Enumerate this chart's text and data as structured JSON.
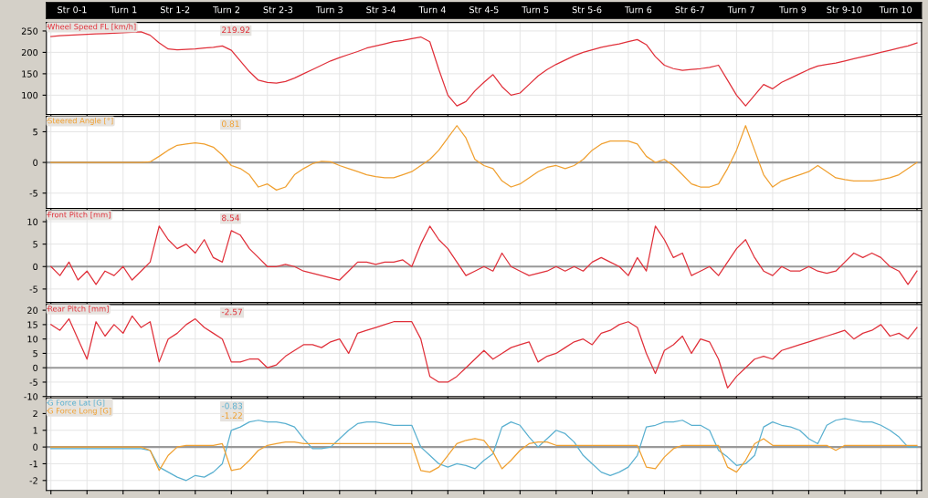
{
  "chart_data": [
    {
      "type": "other",
      "annotations": [
        "Str 0-1",
        "Turn 1",
        "Str 1-2",
        "Turn 2",
        "Str 2-3",
        "Turn 3",
        "Str 3-4",
        "Turn 4",
        "Str 4-5",
        "Turn 5",
        "Str 5-6",
        "Turn 6",
        "Str 6-7",
        "Turn 7",
        "Turn 9",
        "Str 9-10",
        "Turn 10"
      ]
    },
    {
      "type": "line",
      "categories": [
        null,
        null,
        null,
        null,
        null,
        null,
        null,
        null,
        null,
        null,
        null,
        null,
        null,
        null,
        null,
        null,
        null,
        null,
        null,
        null,
        null,
        null,
        null,
        null,
        null,
        null,
        null,
        null,
        null,
        null,
        null,
        null,
        null,
        null,
        null,
        null,
        null,
        null,
        null,
        null,
        null,
        null,
        null,
        null,
        null,
        null,
        null,
        null,
        null,
        null,
        null,
        null,
        null,
        null,
        null,
        null,
        null,
        null,
        null,
        null,
        null,
        null,
        null,
        null,
        null,
        null,
        null,
        null,
        null,
        null,
        null,
        null,
        null,
        null,
        null,
        null,
        null,
        null,
        null,
        null,
        null,
        null,
        null,
        null,
        null,
        null,
        null,
        null,
        null,
        null,
        null,
        null,
        null,
        null,
        null,
        null,
        null
      ],
      "ylim": [
        55,
        270
      ],
      "yticks": [
        100,
        150,
        200,
        250
      ],
      "grid": true,
      "legend": "top left",
      "tick_labels": "y",
      "annotations": [
        "219.92"
      ],
      "series": [
        {
          "name": "Wheel Speed FL [km/h]",
          "color": "#e0303a",
          "values": [
            237,
            239,
            240,
            241,
            242,
            243,
            244,
            245,
            246,
            247,
            248,
            240,
            222,
            208,
            206,
            207,
            208,
            210,
            212,
            215,
            205,
            180,
            155,
            135,
            130,
            128,
            132,
            140,
            150,
            160,
            170,
            180,
            188,
            195,
            202,
            210,
            215,
            220,
            225,
            228,
            232,
            236,
            225,
            160,
            100,
            75,
            85,
            110,
            130,
            148,
            120,
            100,
            105,
            125,
            145,
            160,
            172,
            182,
            192,
            200,
            206,
            212,
            216,
            220,
            225,
            230,
            218,
            190,
            170,
            162,
            158,
            160,
            162,
            165,
            170,
            135,
            100,
            75,
            100,
            125,
            115,
            130,
            140,
            150,
            160,
            168,
            172,
            175,
            180,
            185,
            190,
            195,
            200,
            205,
            210,
            215,
            222
          ]
        }
      ]
    },
    {
      "type": "line",
      "categories": [
        null,
        null,
        null,
        null,
        null,
        null,
        null,
        null,
        null,
        null,
        null,
        null,
        null,
        null,
        null,
        null,
        null,
        null,
        null,
        null,
        null,
        null,
        null,
        null,
        null,
        null,
        null,
        null,
        null,
        null,
        null,
        null,
        null,
        null,
        null,
        null,
        null,
        null,
        null,
        null,
        null,
        null,
        null,
        null,
        null,
        null,
        null,
        null,
        null,
        null,
        null,
        null,
        null,
        null,
        null,
        null,
        null,
        null,
        null,
        null,
        null,
        null,
        null,
        null,
        null,
        null,
        null,
        null,
        null,
        null,
        null,
        null,
        null,
        null,
        null,
        null,
        null,
        null,
        null,
        null,
        null,
        null,
        null,
        null,
        null,
        null,
        null,
        null,
        null,
        null,
        null,
        null,
        null,
        null,
        null,
        null,
        null
      ],
      "ylim": [
        -7.5,
        7.5
      ],
      "yticks": [
        -5,
        0,
        5
      ],
      "grid": true,
      "legend": "top left",
      "tick_labels": "y",
      "annotations": [
        "0.81"
      ],
      "ref_lines": [
        {
          "axis": "y",
          "value": 0,
          "color": "#999999"
        }
      ],
      "series": [
        {
          "name": "Steered Angle [°]",
          "color": "#f0a030",
          "values": [
            0,
            0,
            0,
            0,
            0,
            0,
            0,
            0,
            0,
            0,
            0,
            0.1,
            1,
            2,
            2.8,
            3,
            3.2,
            3,
            2.5,
            1.2,
            -0.5,
            -1,
            -2,
            -4,
            -3.5,
            -4.5,
            -4,
            -2,
            -1,
            -0.2,
            0.2,
            0.1,
            -0.5,
            -1,
            -1.5,
            -2,
            -2.3,
            -2.5,
            -2.5,
            -2,
            -1.5,
            -0.5,
            0.5,
            2,
            4,
            6,
            4,
            0.5,
            -0.5,
            -1,
            -3,
            -4,
            -3.5,
            -2.5,
            -1.5,
            -0.8,
            -0.5,
            -1,
            -0.5,
            0.5,
            2,
            3,
            3.5,
            3.5,
            3.5,
            3,
            1,
            0,
            0.5,
            -0.5,
            -2,
            -3.5,
            -4,
            -4,
            -3.5,
            -1,
            2,
            6,
            2,
            -2,
            -4,
            -3,
            -2.5,
            -2,
            -1.5,
            -0.5,
            -1.5,
            -2.5,
            -2.8,
            -3,
            -3,
            -3,
            -2.8,
            -2.5,
            -2,
            -1,
            0
          ]
        }
      ]
    },
    {
      "type": "line",
      "categories": [
        null,
        null,
        null,
        null,
        null,
        null,
        null,
        null,
        null,
        null,
        null,
        null,
        null,
        null,
        null,
        null,
        null,
        null,
        null,
        null,
        null,
        null,
        null,
        null,
        null,
        null,
        null,
        null,
        null,
        null,
        null,
        null,
        null,
        null,
        null,
        null,
        null,
        null,
        null,
        null,
        null,
        null,
        null,
        null,
        null,
        null,
        null,
        null,
        null,
        null,
        null,
        null,
        null,
        null,
        null,
        null,
        null,
        null,
        null,
        null,
        null,
        null,
        null,
        null,
        null,
        null,
        null,
        null,
        null,
        null,
        null,
        null,
        null,
        null,
        null,
        null,
        null,
        null,
        null,
        null,
        null,
        null,
        null,
        null,
        null,
        null,
        null,
        null,
        null,
        null,
        null,
        null,
        null,
        null,
        null,
        null,
        null
      ],
      "ylim": [
        -8,
        12.5
      ],
      "yticks": [
        -5,
        0,
        5,
        10
      ],
      "grid": true,
      "legend": "top left",
      "tick_labels": "y",
      "annotations": [
        "8.54"
      ],
      "ref_lines": [
        {
          "axis": "y",
          "value": 0,
          "color": "#999999"
        }
      ],
      "series": [
        {
          "name": "Front Pitch [mm]",
          "color": "#e0303a",
          "values": [
            0,
            -2,
            1,
            -3,
            -1,
            -4,
            -1,
            -2,
            0,
            -3,
            -1,
            1,
            9,
            6,
            4,
            5,
            3,
            6,
            2,
            1,
            8,
            7,
            4,
            2,
            0,
            0,
            0.5,
            0,
            -1,
            -1.5,
            -2,
            -2.5,
            -3,
            -1,
            1,
            1,
            0.5,
            1,
            1,
            1.5,
            0,
            5,
            9,
            6,
            4,
            1,
            -2,
            -1,
            0,
            -1,
            3,
            0,
            -1,
            -2,
            -1.5,
            -1,
            0,
            -1,
            0,
            -1,
            1,
            2,
            1,
            0,
            -2,
            2,
            -1,
            9,
            6,
            2,
            3,
            -2,
            -1,
            0,
            -2,
            1,
            4,
            6,
            2,
            -1,
            -2,
            0,
            -1,
            -1,
            0,
            -1,
            -1.5,
            -1,
            1,
            3,
            2,
            3,
            2,
            0,
            -1,
            -4,
            -1
          ]
        }
      ]
    },
    {
      "type": "line",
      "categories": [
        null,
        null,
        null,
        null,
        null,
        null,
        null,
        null,
        null,
        null,
        null,
        null,
        null,
        null,
        null,
        null,
        null,
        null,
        null,
        null,
        null,
        null,
        null,
        null,
        null,
        null,
        null,
        null,
        null,
        null,
        null,
        null,
        null,
        null,
        null,
        null,
        null,
        null,
        null,
        null,
        null,
        null,
        null,
        null,
        null,
        null,
        null,
        null,
        null,
        null,
        null,
        null,
        null,
        null,
        null,
        null,
        null,
        null,
        null,
        null,
        null,
        null,
        null,
        null,
        null,
        null,
        null,
        null,
        null,
        null,
        null,
        null,
        null,
        null,
        null,
        null,
        null,
        null,
        null,
        null,
        null,
        null,
        null,
        null,
        null,
        null,
        null,
        null,
        null,
        null,
        null,
        null,
        null,
        null,
        null,
        null,
        null
      ],
      "ylim": [
        -10,
        22
      ],
      "yticks": [
        -10,
        -5,
        0,
        5,
        10,
        15,
        20
      ],
      "grid": true,
      "legend": "top left",
      "tick_labels": "y",
      "annotations": [
        "-2.57"
      ],
      "ref_lines": [
        {
          "axis": "y",
          "value": 0,
          "color": "#999999"
        }
      ],
      "series": [
        {
          "name": "Rear Pitch [mm]",
          "color": "#e0303a",
          "values": [
            15,
            13,
            17,
            10,
            3,
            16,
            11,
            15,
            12,
            18,
            14,
            16,
            2,
            10,
            12,
            15,
            17,
            14,
            12,
            10,
            2,
            2,
            3,
            3,
            0,
            1,
            4,
            6,
            8,
            8,
            7,
            9,
            10,
            5,
            12,
            13,
            14,
            15,
            16,
            16,
            16,
            10,
            -3,
            -5,
            -5,
            -3,
            0,
            3,
            6,
            3,
            5,
            7,
            8,
            9,
            2,
            4,
            5,
            7,
            9,
            10,
            8,
            12,
            13,
            15,
            16,
            14,
            5,
            -2,
            6,
            8,
            11,
            5,
            10,
            9,
            3,
            -7,
            -3,
            0,
            3,
            4,
            3,
            6,
            7,
            8,
            9,
            10,
            11,
            12,
            13,
            10,
            12,
            13,
            15,
            11,
            12,
            10,
            14
          ]
        }
      ]
    },
    {
      "type": "line",
      "categories": [
        null,
        null,
        null,
        null,
        null,
        null,
        null,
        null,
        null,
        null,
        null,
        null,
        null,
        null,
        null,
        null,
        null,
        null,
        null,
        null,
        null,
        null,
        null,
        null,
        null,
        null,
        null,
        null,
        null,
        null,
        null,
        null,
        null,
        null,
        null,
        null,
        null,
        null,
        null,
        null,
        null,
        null,
        null,
        null,
        null,
        null,
        null,
        null,
        null,
        null,
        null,
        null,
        null,
        null,
        null,
        null,
        null,
        null,
        null,
        null,
        null,
        null,
        null,
        null,
        null,
        null,
        null,
        null,
        null,
        null,
        null,
        null,
        null,
        null,
        null,
        null,
        null,
        null,
        null,
        null,
        null,
        null,
        null,
        null,
        null,
        null,
        null,
        null,
        null,
        null,
        null,
        null,
        null,
        null,
        null,
        null,
        null
      ],
      "ylim": [
        -2.6,
        2.9
      ],
      "yticks": [
        -2,
        -1,
        0,
        1,
        2
      ],
      "grid": true,
      "legend": "top left",
      "tick_labels": "y",
      "annotations": [
        "-0.83",
        "-1.22"
      ],
      "ref_lines": [
        {
          "axis": "y",
          "value": 0,
          "color": "#999999"
        }
      ],
      "series": [
        {
          "name": "G Force Lat [G]",
          "color": "#5ab0d0",
          "values": [
            -0.1,
            -0.1,
            -0.1,
            -0.1,
            -0.1,
            -0.1,
            -0.1,
            -0.1,
            -0.1,
            -0.1,
            -0.1,
            -0.2,
            -1.2,
            -1.5,
            -1.8,
            -2,
            -1.7,
            -1.8,
            -1.5,
            -1,
            1,
            1.2,
            1.5,
            1.6,
            1.5,
            1.5,
            1.4,
            1.2,
            0.5,
            -0.1,
            -0.1,
            0,
            0.5,
            1,
            1.4,
            1.5,
            1.5,
            1.4,
            1.3,
            1.3,
            1.3,
            0,
            -0.5,
            -1,
            -1.2,
            -1,
            -1.1,
            -1.3,
            -0.8,
            -0.4,
            1.2,
            1.5,
            1.3,
            0.6,
            0,
            0.5,
            1,
            0.8,
            0.3,
            -0.5,
            -1,
            -1.5,
            -1.7,
            -1.5,
            -1.2,
            -0.5,
            1.2,
            1.3,
            1.5,
            1.5,
            1.6,
            1.3,
            1.3,
            1,
            -0.2,
            -0.6,
            -1.1,
            -1,
            -0.5,
            1.2,
            1.5,
            1.3,
            1.2,
            1,
            0.5,
            0.2,
            1.3,
            1.6,
            1.7,
            1.6,
            1.5,
            1.5,
            1.3,
            1,
            0.6,
            0,
            0
          ]
        },
        {
          "name": "G Force Long [G]",
          "color": "#f0a030",
          "values": [
            0,
            0,
            0,
            0,
            0,
            0,
            0,
            0,
            0,
            0,
            0,
            -0.2,
            -1.4,
            -0.5,
            0,
            0.1,
            0.1,
            0.1,
            0.1,
            0.2,
            -1.4,
            -1.3,
            -0.8,
            -0.2,
            0.1,
            0.2,
            0.3,
            0.3,
            0.2,
            0.2,
            0.2,
            0.2,
            0.2,
            0.2,
            0.2,
            0.2,
            0.2,
            0.2,
            0.2,
            0.2,
            0.2,
            -1.4,
            -1.5,
            -1.2,
            -0.5,
            0.2,
            0.4,
            0.5,
            0.4,
            -0.3,
            -1.3,
            -0.8,
            -0.2,
            0.2,
            0.3,
            0.3,
            0.1,
            0.1,
            0.1,
            0.1,
            0.1,
            0.1,
            0.1,
            0.1,
            0.1,
            0.1,
            -1.2,
            -1.3,
            -0.6,
            -0.1,
            0.1,
            0.1,
            0.1,
            0.1,
            0.1,
            -1.2,
            -1.5,
            -0.8,
            0.2,
            0.5,
            0.1,
            0.1,
            0.1,
            0.1,
            0.1,
            0.1,
            0.1,
            -0.2,
            0.1,
            0.1,
            0.1,
            0.1,
            0.1,
            0.1,
            0.1,
            0.1,
            0.1
          ]
        }
      ]
    }
  ]
}
